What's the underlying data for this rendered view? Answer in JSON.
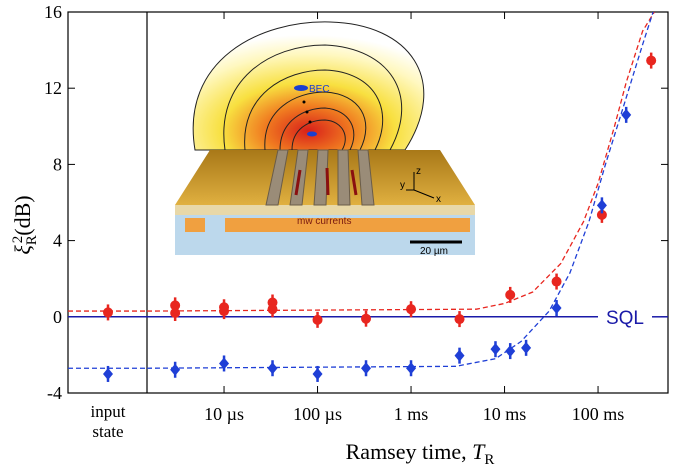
{
  "chart_data": {
    "type": "scatter",
    "xscale": "log",
    "xlim": [
      1.5e-06,
      0.56
    ],
    "ylim": [
      -4,
      16
    ],
    "yticks": [
      -4,
      0,
      4,
      8,
      12,
      16
    ],
    "xticks": [
      {
        "value": 1e-05,
        "label": "10 µs"
      },
      {
        "value": 0.0001,
        "label": "100 µs"
      },
      {
        "value": 0.001,
        "label": "1 ms"
      },
      {
        "value": 0.01,
        "label": "10 ms"
      },
      {
        "value": 0.1,
        "label": "100 ms"
      }
    ],
    "xlabel": [
      "Ramsey time, ",
      "T",
      "R"
    ],
    "ylabel": [
      "ξ",
      "R",
      "2",
      "(dB)"
    ],
    "input_label": "input state",
    "reference": {
      "label": "SQL",
      "value": 0,
      "color": "#1a1aa8"
    },
    "series": [
      {
        "color": "#e8261f",
        "marker": "circle",
        "input_value": 0.23,
        "x": [
          3e-06,
          3e-06,
          1e-05,
          1e-05,
          3.3e-05,
          3.3e-05,
          0.0001,
          0.00033,
          0.001,
          0.0033,
          0.0115,
          0.036,
          0.11,
          0.37
        ],
        "values": [
          0.6,
          0.2,
          0.5,
          0.3,
          0.75,
          0.4,
          -0.16,
          -0.1,
          0.4,
          -0.12,
          1.15,
          1.85,
          5.35,
          13.45
        ],
        "fit": {
          "x": [
            1.5e-06,
            0.005,
            0.01,
            0.02,
            0.04,
            0.07,
            0.1,
            0.15,
            0.2,
            0.3,
            0.4
          ],
          "values": [
            0.3,
            0.4,
            0.7,
            1.3,
            2.8,
            5,
            7,
            10,
            12.3,
            15,
            16
          ]
        }
      },
      {
        "color": "#1f3fd6",
        "marker": "diamond",
        "input_value": -3.0,
        "x": [
          3e-06,
          1e-05,
          3.3e-05,
          0.0001,
          0.00033,
          0.001,
          0.0033,
          0.008,
          0.0115,
          0.017,
          0.036,
          0.11,
          0.2
        ],
        "values": [
          -2.78,
          -2.45,
          -2.7,
          -3.0,
          -2.7,
          -2.7,
          -2.04,
          -1.7,
          -1.8,
          -1.63,
          0.46,
          5.85,
          10.6
        ],
        "fit": {
          "x": [
            1.5e-06,
            0.003,
            0.008,
            0.015,
            0.03,
            0.05,
            0.08,
            0.12,
            0.2,
            0.3,
            0.4
          ],
          "values": [
            -2.7,
            -2.6,
            -2.2,
            -1.3,
            0.3,
            2.3,
            5,
            8,
            11.5,
            14.3,
            16.2
          ]
        }
      }
    ],
    "inset": {
      "bec": "BEC",
      "currents": "mw currents",
      "scale": "20 µm",
      "axes": [
        "x",
        "y",
        "z"
      ]
    }
  }
}
